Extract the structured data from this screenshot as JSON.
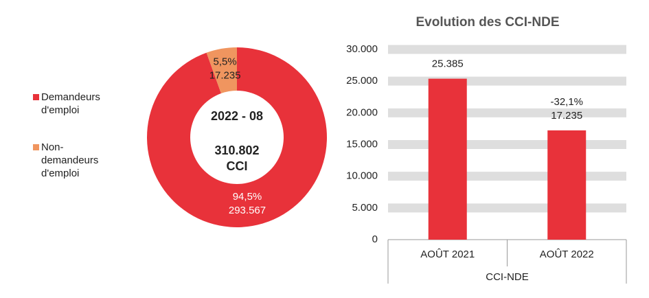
{
  "chart_data": [
    {
      "type": "pie",
      "hole": true,
      "categories": [
        "Demandeurs d'emploi",
        "Non-demandeurs d'emploi"
      ],
      "values": [
        94.5,
        5.5
      ],
      "value_labels": [
        "94,5%",
        "5,5%"
      ],
      "counts": [
        293567,
        17235
      ],
      "count_labels": [
        "293.567",
        "17.235"
      ],
      "colors": [
        "#e8323a",
        "#f0955f"
      ],
      "center_title": "2022 - 08",
      "center_value": "310.802",
      "center_unit": "CCI",
      "legend": "left"
    },
    {
      "type": "bar",
      "title": "Evolution des CCI-NDE",
      "x_label": "CCI-NDE",
      "categories": [
        "AOÛT 2021",
        "AOÛT 2022"
      ],
      "values": [
        25385,
        17235
      ],
      "value_labels": [
        "25.385",
        "17.235"
      ],
      "annotations": [
        null,
        "-32,1%"
      ],
      "color": "#e8323a",
      "ylim": [
        0,
        30000
      ],
      "yticks": [
        0,
        {
          "value": 5000,
          "label": "5.000"
        },
        {
          "value": 10000,
          "label": "10.000"
        },
        {
          "value": 15000,
          "label": "15.000"
        },
        {
          "value": 20000,
          "label": "20.000"
        },
        {
          "value": 25000,
          "label": "25.000"
        },
        {
          "value": 30000,
          "label": "30.000"
        }
      ],
      "grid": true
    }
  ]
}
